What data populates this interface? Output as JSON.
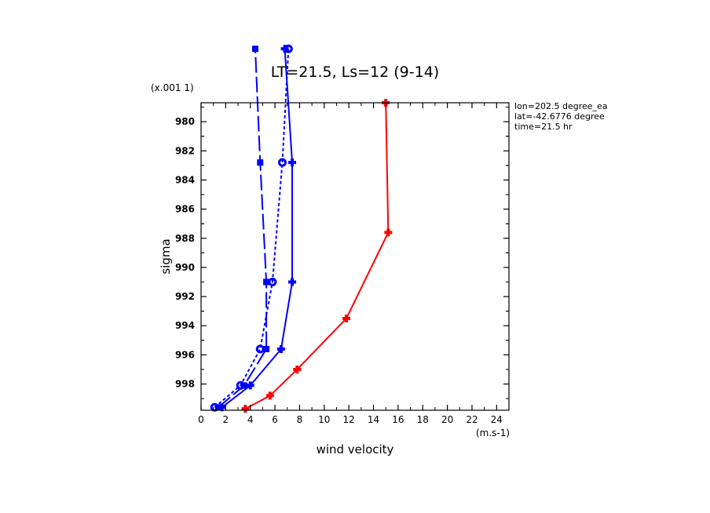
{
  "chart_data": {
    "type": "line",
    "title": "LT=21.5, Ls=12 (9-14)",
    "xlabel": "wind velocity",
    "ylabel": "sigma",
    "x_units": "(m.s-1)",
    "y_scale_note": "(x.001 1)",
    "xlim": [
      0,
      25
    ],
    "ylim": [
      999.8,
      978.7
    ],
    "xticks": [
      "0",
      "2",
      "4",
      "6",
      "8",
      "10",
      "12",
      "14",
      "16",
      "18",
      "20",
      "22",
      "24"
    ],
    "yticks": [
      "980",
      "982",
      "984",
      "986",
      "988",
      "990",
      "992",
      "994",
      "996",
      "998"
    ],
    "info": [
      "lon=202.5 degree_ea",
      "lat=-42.6776 degree",
      "time=21.5 hr"
    ],
    "series": [
      {
        "color": "#0000ff",
        "dash": "",
        "marker": "plus",
        "points": [
          [
            1.7,
            999.6
          ],
          [
            4.0,
            998.1
          ],
          [
            6.5,
            995.6
          ],
          [
            7.4,
            991.0
          ],
          [
            7.4,
            982.8
          ],
          [
            6.8,
            975.0
          ]
        ]
      },
      {
        "color": "#0000ff",
        "dash": "4,3",
        "marker": "circle",
        "points": [
          [
            1.1,
            999.6
          ],
          [
            3.2,
            998.1
          ],
          [
            4.8,
            995.6
          ],
          [
            5.8,
            991.0
          ],
          [
            6.6,
            982.8
          ],
          [
            7.1,
            975.0
          ]
        ]
      },
      {
        "color": "#0000ff",
        "dash": "20,5",
        "marker": "diamond",
        "points": [
          [
            1.4,
            999.6
          ],
          [
            3.5,
            998.1
          ],
          [
            5.3,
            995.6
          ],
          [
            5.3,
            991.0
          ],
          [
            4.8,
            982.8
          ],
          [
            4.4,
            975.0
          ]
        ]
      },
      {
        "color": "#ff0000",
        "dash": "",
        "marker": "plus",
        "points": [
          [
            3.6,
            999.7
          ],
          [
            5.6,
            998.8
          ],
          [
            7.8,
            997.0
          ],
          [
            11.8,
            993.5
          ],
          [
            15.2,
            987.6
          ],
          [
            15.0,
            978.7
          ]
        ]
      }
    ]
  }
}
